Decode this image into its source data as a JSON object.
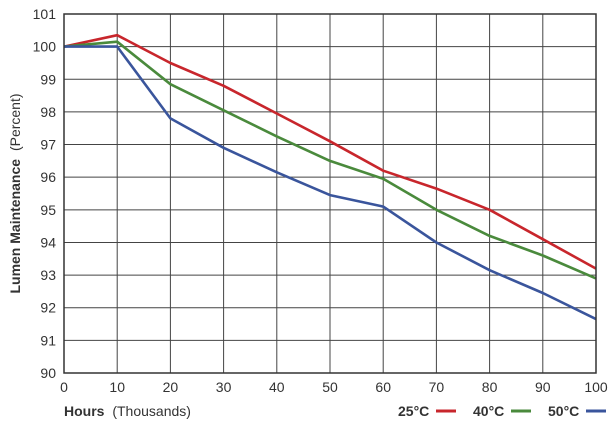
{
  "chart_data": {
    "type": "line",
    "title": "",
    "xlabel": {
      "main": "Hours",
      "unit": "(Thousands)"
    },
    "ylabel": {
      "main": "Lumen Maintenance",
      "unit": "(Percent)"
    },
    "xlim": [
      0,
      100
    ],
    "ylim": [
      90,
      101
    ],
    "xticks": [
      0,
      10,
      20,
      30,
      40,
      50,
      60,
      70,
      80,
      90,
      100
    ],
    "yticks": [
      90,
      91,
      92,
      93,
      94,
      95,
      96,
      97,
      98,
      99,
      100,
      101
    ],
    "grid": true,
    "legend_position": "bottom-right",
    "x": [
      0,
      10,
      20,
      30,
      40,
      50,
      60,
      70,
      80,
      90,
      100
    ],
    "series": [
      {
        "name": "25°C",
        "color": "#c8262c",
        "values": [
          100,
          100.35,
          99.5,
          98.8,
          97.95,
          97.1,
          96.2,
          95.65,
          95.0,
          94.1,
          93.2
        ]
      },
      {
        "name": "40°C",
        "color": "#4a8a3c",
        "values": [
          100,
          100.15,
          98.85,
          98.05,
          97.25,
          96.5,
          95.95,
          95.0,
          94.2,
          93.6,
          92.9
        ]
      },
      {
        "name": "50°C",
        "color": "#3a559c",
        "values": [
          100,
          100.0,
          97.8,
          96.9,
          96.15,
          95.45,
          95.1,
          94.0,
          93.15,
          92.45,
          91.65
        ]
      }
    ]
  }
}
